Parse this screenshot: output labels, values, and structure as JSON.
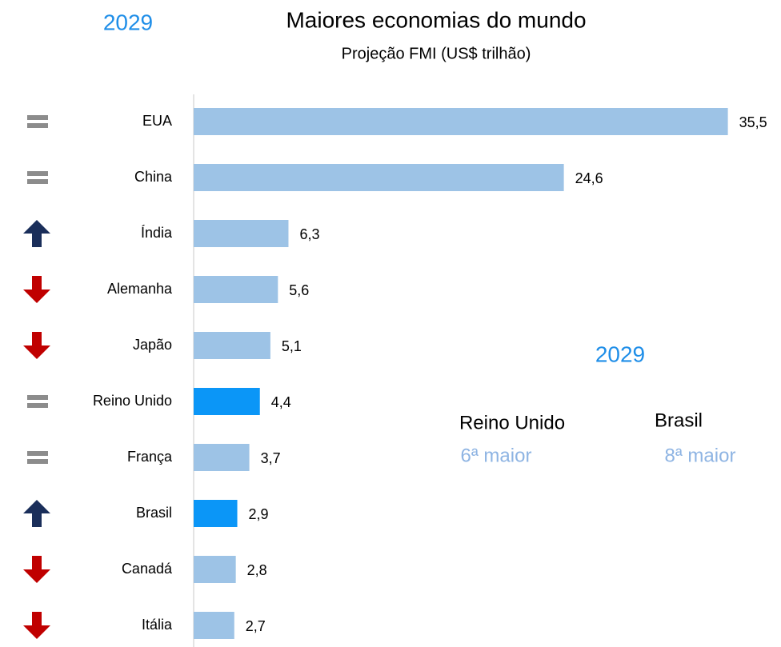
{
  "chart_data": {
    "type": "hbar",
    "year": "2029",
    "title": "Maiores economias do mundo",
    "subtitle": "Projeção FMI (US$ trilhão)",
    "categories": [
      "EUA",
      "China",
      "Índia",
      "Alemanha",
      "Japão",
      "Reino Unido",
      "França",
      "Brasil",
      "Canadá",
      "Itália"
    ],
    "values": [
      35.5,
      24.6,
      6.3,
      5.6,
      5.1,
      4.4,
      3.7,
      2.9,
      2.8,
      2.7
    ],
    "value_labels": [
      "35,5",
      "24,6",
      "6,3",
      "5,6",
      "5,1",
      "4,4",
      "3,7",
      "2,9",
      "2,8",
      "2,7"
    ],
    "colors": [
      "#9dc3e6",
      "#9dc3e6",
      "#9dc3e6",
      "#9dc3e6",
      "#9dc3e6",
      "#0b96f7",
      "#9dc3e6",
      "#0b96f7",
      "#9dc3e6",
      "#9dc3e6"
    ],
    "trend": [
      "same",
      "same",
      "up",
      "down",
      "down",
      "same",
      "same",
      "up",
      "down",
      "down"
    ],
    "xlim": [
      0,
      36
    ],
    "annotations": [
      "2029",
      "Reino Unido",
      "6ª maior",
      "Brasil",
      "8ª maior"
    ]
  }
}
